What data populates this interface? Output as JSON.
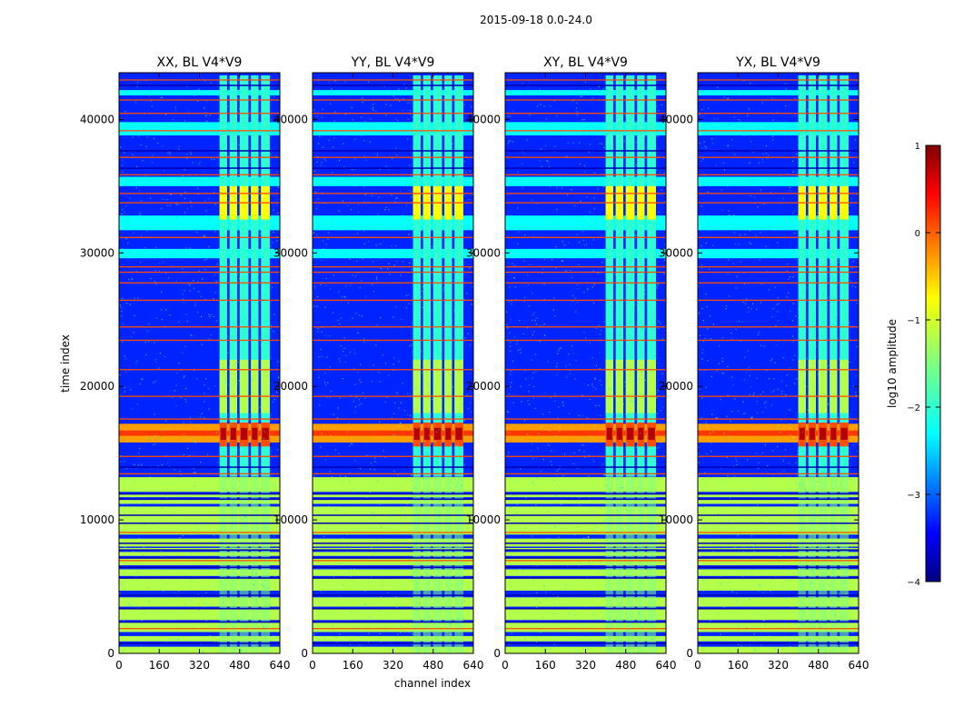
{
  "figure": {
    "suptitle": "2015-09-18 0.0-24.0",
    "colormap_name": "jet"
  },
  "chart_data": [
    {
      "type": "heatmap",
      "title": "XX, BL V4*V9",
      "xlabel": "channel index",
      "ylabel": "time index",
      "xlim": [
        0,
        640
      ],
      "ylim": [
        0,
        43500
      ],
      "xticks": [
        0,
        160,
        320,
        480,
        640
      ],
      "yticks": [
        0,
        10000,
        20000,
        30000,
        40000
      ],
      "flag_channel_range": [
        400,
        600
      ],
      "flag_channel_gaps": [
        430,
        470,
        515,
        555
      ],
      "flare_time_range": [
        15800,
        17200
      ],
      "saturated_flare_level": 0.8
    },
    {
      "type": "heatmap",
      "title": "YY, BL V4*V9",
      "xlabel": "channel index",
      "ylabel": "",
      "xlim": [
        0,
        640
      ],
      "ylim": [
        0,
        43500
      ],
      "xticks": [
        0,
        160,
        320,
        480,
        640
      ],
      "yticks": [
        0,
        10000,
        20000,
        30000,
        40000
      ],
      "flag_channel_range": [
        400,
        600
      ],
      "flag_channel_gaps": [
        430,
        470,
        515,
        555
      ],
      "flare_time_range": [
        15800,
        17200
      ],
      "saturated_flare_level": 0.8
    },
    {
      "type": "heatmap",
      "title": "XY, BL V4*V9",
      "xlabel": "channel index",
      "ylabel": "",
      "xlim": [
        0,
        640
      ],
      "ylim": [
        0,
        43500
      ],
      "xticks": [
        0,
        160,
        320,
        480,
        640
      ],
      "yticks": [
        0,
        10000,
        20000,
        30000,
        40000
      ],
      "flag_channel_range": [
        400,
        600
      ],
      "flag_channel_gaps": [
        430,
        470,
        515,
        555
      ],
      "flare_time_range": [
        15800,
        17200
      ],
      "saturated_flare_level": 0.8
    },
    {
      "type": "heatmap",
      "title": "YX, BL V4*V9",
      "xlabel": "channel index",
      "ylabel": "",
      "xlim": [
        0,
        640
      ],
      "ylim": [
        0,
        43500
      ],
      "xticks": [
        0,
        160,
        320,
        480,
        640
      ],
      "yticks": [
        0,
        10000,
        20000,
        30000,
        40000
      ],
      "flag_channel_range": [
        400,
        600
      ],
      "flag_channel_gaps": [
        430,
        470,
        515,
        555
      ],
      "flare_time_range": [
        15800,
        17200
      ],
      "saturated_flare_level": 0.8
    }
  ],
  "colorbar": {
    "label": "log10 amplitude",
    "range": [
      -4,
      1
    ],
    "ticks": [
      -4,
      -3,
      -2,
      -1,
      0,
      1
    ],
    "tick_labels": [
      "−4",
      "−3",
      "−2",
      "−1",
      "0",
      "1"
    ]
  },
  "xlabel_shared": "channel index",
  "ylabel_shared": "time index"
}
